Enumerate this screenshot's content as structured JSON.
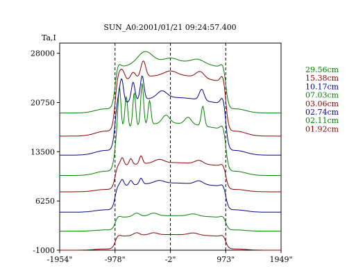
{
  "chart_data": {
    "type": "line",
    "title": "SUN_A0:2001/01/21 09:24:57.400",
    "ylabel": "Ta,I",
    "xlabel": "",
    "xlim": [
      -1954,
      1949
    ],
    "ylim": [
      -1000,
      29500
    ],
    "x_ticks": [
      {
        "value": -1954,
        "label": "-1954\""
      },
      {
        "value": -978,
        "label": "-978\""
      },
      {
        "value": -2,
        "label": "-2\""
      },
      {
        "value": 973,
        "label": "973\""
      },
      {
        "value": 1949,
        "label": "1949\""
      }
    ],
    "y_ticks": [
      {
        "value": 28000,
        "label": "28000"
      },
      {
        "value": 20750,
        "label": "20750"
      },
      {
        "value": 13500,
        "label": "13500"
      },
      {
        "value": 6250,
        "label": "6250"
      },
      {
        "value": -1000,
        "label": "-1000"
      }
    ],
    "vlines": [
      -978,
      -2,
      973
    ],
    "grid": false,
    "legend_position": "right",
    "series": [
      {
        "name": "01.92cm",
        "color": "#8b0000",
        "baseline": -1000,
        "disk": 2300,
        "limb": 300,
        "features": [
          {
            "x": -600,
            "h": 400,
            "w": 80
          },
          {
            "x": -300,
            "h": 300,
            "w": 100
          },
          {
            "x": 400,
            "h": 300,
            "w": 120
          }
        ]
      },
      {
        "name": "02.11cm",
        "color": "#008000",
        "baseline": 1800,
        "disk": 2300,
        "limb": 300,
        "features": [
          {
            "x": -600,
            "h": 500,
            "w": 80
          },
          {
            "x": -300,
            "h": 400,
            "w": 100
          },
          {
            "x": 400,
            "h": 300,
            "w": 120
          }
        ]
      },
      {
        "name": "02.74cm",
        "color": "#00008b",
        "baseline": 4600,
        "disk": 4300,
        "limb": 500,
        "features": [
          {
            "x": -850,
            "h": 900,
            "w": 40
          },
          {
            "x": -700,
            "h": 700,
            "w": 40
          },
          {
            "x": -520,
            "h": 900,
            "w": 40
          },
          {
            "x": -200,
            "h": 400,
            "w": 120
          },
          {
            "x": 500,
            "h": 500,
            "w": 100
          }
        ]
      },
      {
        "name": "03.06cm",
        "color": "#8b0000",
        "baseline": 7600,
        "disk": 4300,
        "limb": 500,
        "features": [
          {
            "x": -850,
            "h": 1100,
            "w": 40
          },
          {
            "x": -700,
            "h": 900,
            "w": 40
          },
          {
            "x": -520,
            "h": 1200,
            "w": 40
          },
          {
            "x": -200,
            "h": 500,
            "w": 120
          },
          {
            "x": 500,
            "h": 500,
            "w": 100
          }
        ]
      },
      {
        "name": "07.03cm",
        "color": "#008000",
        "baseline": 10000,
        "disk": 7700,
        "limb": 1000,
        "features": [
          {
            "x": -900,
            "h": 5700,
            "w": 35
          },
          {
            "x": -780,
            "h": 4600,
            "w": 35
          },
          {
            "x": -640,
            "h": 5000,
            "w": 35
          },
          {
            "x": -500,
            "h": 6200,
            "w": 35
          },
          {
            "x": -370,
            "h": 3500,
            "w": 35
          },
          {
            "x": -80,
            "h": 1200,
            "w": 90
          },
          {
            "x": 310,
            "h": 1000,
            "w": 80
          },
          {
            "x": 570,
            "h": 2900,
            "w": 40
          }
        ]
      },
      {
        "name": "10.17cm",
        "color": "#00008b",
        "baseline": 13000,
        "disk": 8500,
        "limb": 1500,
        "features": [
          {
            "x": -860,
            "h": 3300,
            "w": 45
          },
          {
            "x": -660,
            "h": 2800,
            "w": 45
          },
          {
            "x": -500,
            "h": 3500,
            "w": 45
          },
          {
            "x": -150,
            "h": 1000,
            "w": 120
          },
          {
            "x": 550,
            "h": 1600,
            "w": 60
          }
        ]
      },
      {
        "name": "15.38cm",
        "color": "#8b0000",
        "baseline": 15800,
        "disk": 9000,
        "limb": 1500,
        "features": [
          {
            "x": -850,
            "h": 1500,
            "w": 60
          },
          {
            "x": -660,
            "h": 1000,
            "w": 60
          },
          {
            "x": -480,
            "h": 2400,
            "w": 60
          },
          {
            "x": 0,
            "h": 600,
            "w": 150
          },
          {
            "x": 520,
            "h": 900,
            "w": 100
          }
        ]
      },
      {
        "name": "29.56cm",
        "color": "#008000",
        "baseline": 19200,
        "disk": 7600,
        "limb": 900,
        "features": [
          {
            "x": -450,
            "h": 1700,
            "w": 180
          },
          {
            "x": 0,
            "h": 500,
            "w": 160
          },
          {
            "x": 480,
            "h": 600,
            "w": 160
          }
        ]
      }
    ]
  }
}
